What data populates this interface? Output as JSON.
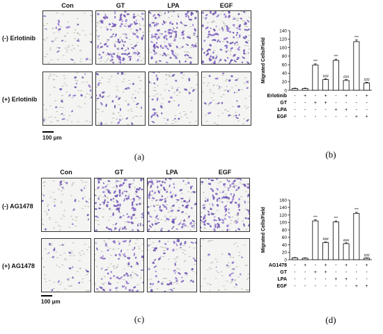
{
  "panels": [
    {
      "id": "a",
      "caption": "(a)",
      "columns": [
        "Con",
        "GT",
        "LPA",
        "EGF"
      ],
      "rows": [
        "(-) Erlotinib",
        "(+) Erlotinib"
      ],
      "scale_label": "100 μm",
      "stain_density": [
        [
          0.15,
          0.9,
          0.9,
          0.95
        ],
        [
          0.15,
          0.25,
          0.25,
          0.2
        ]
      ]
    },
    {
      "id": "c",
      "caption": "(c)",
      "columns": [
        "Con",
        "GT",
        "LPA",
        "EGF"
      ],
      "rows": [
        "(-) AG1478",
        "(+) AG1478"
      ],
      "scale_label": "100 μm",
      "stain_density": [
        [
          0.15,
          0.95,
          0.85,
          0.95
        ],
        [
          0.15,
          0.55,
          0.45,
          0.1
        ]
      ]
    }
  ],
  "chart_data": [
    {
      "id": "b",
      "caption": "(b)",
      "type": "bar",
      "ylabel": "Migrated Cells/Field",
      "ylim": [
        0,
        140
      ],
      "yticks": [
        0,
        20,
        40,
        60,
        80,
        100,
        120,
        140
      ],
      "values": [
        4,
        4,
        59,
        25,
        70,
        23,
        114,
        17
      ],
      "errors": [
        1,
        1,
        3,
        2,
        3,
        2,
        4,
        2
      ],
      "annotations": [
        "",
        "",
        "***",
        "###",
        "***",
        "###",
        "***",
        "###"
      ],
      "treatment_rows": [
        {
          "label": "Erlotinib",
          "signs": [
            "-",
            "+",
            "-",
            "+",
            "-",
            "+",
            "-",
            "+"
          ]
        },
        {
          "label": "GT",
          "signs": [
            "-",
            "-",
            "+",
            "+",
            "-",
            "-",
            "-",
            "-"
          ]
        },
        {
          "label": "LPA",
          "signs": [
            "-",
            "-",
            "-",
            "-",
            "+",
            "+",
            "-",
            "-"
          ]
        },
        {
          "label": "EGF",
          "signs": [
            "-",
            "-",
            "-",
            "-",
            "-",
            "-",
            "+",
            "+"
          ]
        }
      ],
      "grid": false
    },
    {
      "id": "d",
      "caption": "(d)",
      "type": "bar",
      "ylabel": "Migrated Cells/Field",
      "ylim": [
        0,
        160
      ],
      "yticks": [
        0,
        20,
        40,
        60,
        80,
        100,
        120,
        140,
        160
      ],
      "values": [
        5,
        4,
        104,
        46,
        101,
        43,
        124,
        4
      ],
      "errors": [
        1,
        1,
        3,
        2,
        3,
        2,
        3,
        1
      ],
      "annotations": [
        "",
        "",
        "***",
        "###",
        "***",
        "###",
        "***",
        "###"
      ],
      "treatment_rows": [
        {
          "label": "AG1478",
          "signs": [
            "-",
            "+",
            "-",
            "+",
            "-",
            "+",
            "-",
            "+"
          ]
        },
        {
          "label": "GT",
          "signs": [
            "-",
            "-",
            "+",
            "+",
            "-",
            "-",
            "-",
            "-"
          ]
        },
        {
          "label": "LPA",
          "signs": [
            "-",
            "-",
            "-",
            "-",
            "+",
            "+",
            "-",
            "-"
          ]
        },
        {
          "label": "EGF",
          "signs": [
            "-",
            "-",
            "-",
            "-",
            "-",
            "-",
            "+",
            "+"
          ]
        }
      ],
      "grid": false
    }
  ]
}
